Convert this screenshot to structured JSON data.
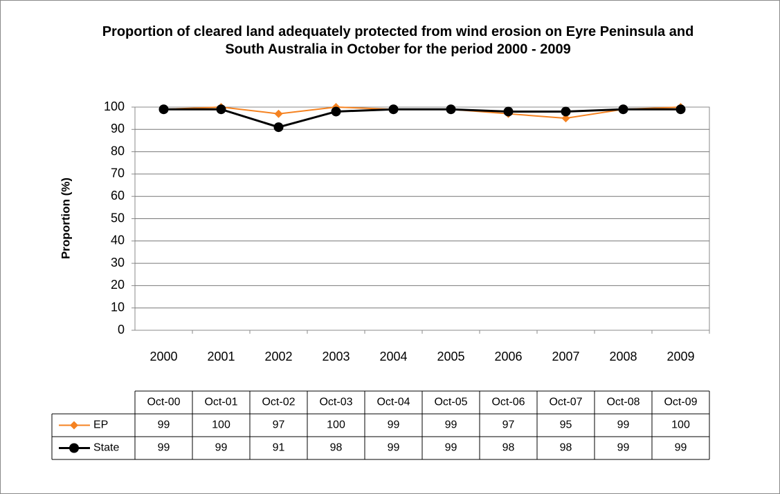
{
  "chart_data": {
    "type": "line",
    "title": "Proportion of cleared land adequately protected from wind erosion on Eyre Peninsula and South Australia in October for the period 2000 - 2009",
    "ylabel": "Proportion (%)",
    "categories": [
      "2000",
      "2001",
      "2002",
      "2003",
      "2004",
      "2005",
      "2006",
      "2007",
      "2008",
      "2009"
    ],
    "table_columns": [
      "Oct-00",
      "Oct-01",
      "Oct-02",
      "Oct-03",
      "Oct-04",
      "Oct-05",
      "Oct-06",
      "Oct-07",
      "Oct-08",
      "Oct-09"
    ],
    "series": [
      {
        "name": "EP",
        "color": "#f58220",
        "marker": "diamond",
        "values": [
          99,
          100,
          97,
          100,
          99,
          99,
          97,
          95,
          99,
          100
        ]
      },
      {
        "name": "State",
        "color": "#000000",
        "marker": "circle",
        "values": [
          99,
          99,
          91,
          98,
          99,
          99,
          98,
          98,
          99,
          99
        ]
      }
    ],
    "ylim": [
      0,
      100
    ],
    "yticks": [
      0,
      10,
      20,
      30,
      40,
      50,
      60,
      70,
      80,
      90,
      100
    ],
    "grid": true
  }
}
